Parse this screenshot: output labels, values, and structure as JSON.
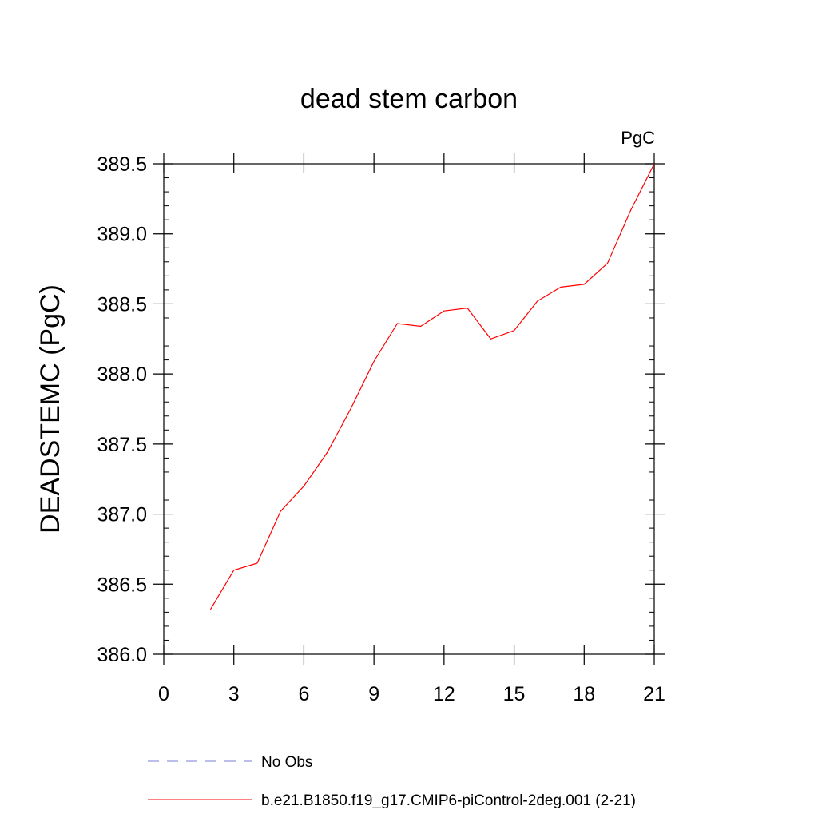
{
  "chart_data": {
    "type": "line",
    "title": "dead stem carbon",
    "units_label": "PgC",
    "ylabel": "DEADSTEMC  (PgC)",
    "xlabel": "",
    "xlim": [
      0,
      21
    ],
    "ylim": [
      386.0,
      389.5
    ],
    "x_ticks": [
      0,
      3,
      6,
      9,
      12,
      15,
      18,
      21
    ],
    "y_ticks": [
      386.0,
      386.5,
      387.0,
      387.5,
      388.0,
      388.5,
      389.0,
      389.5
    ],
    "x_tick_labels": [
      "0",
      "3",
      "6",
      "9",
      "12",
      "15",
      "18",
      "21"
    ],
    "y_tick_labels": [
      "386.0",
      "386.5",
      "387.0",
      "387.5",
      "388.0",
      "388.5",
      "389.0",
      "389.5"
    ],
    "grid": false,
    "legend_position": "bottom",
    "series": [
      {
        "name": "b.e21.B1850.f19_g17.CMIP6-piControl-2deg.001 (2-21)",
        "color": "#ff0000",
        "style": "solid",
        "x": [
          2,
          3,
          4,
          5,
          6,
          7,
          8,
          9,
          10,
          11,
          12,
          13,
          14,
          15,
          16,
          17,
          18,
          19,
          20,
          21
        ],
        "values": [
          386.32,
          386.6,
          386.65,
          387.02,
          387.2,
          387.44,
          387.75,
          388.09,
          388.36,
          388.34,
          388.45,
          388.47,
          388.25,
          388.31,
          388.52,
          388.62,
          388.64,
          388.79,
          389.17,
          389.5
        ]
      }
    ],
    "legend": [
      {
        "label": "No Obs",
        "color": "#7b7bd6",
        "style": "dashed"
      },
      {
        "label": "b.e21.B1850.f19_g17.CMIP6-piControl-2deg.001 (2-21)",
        "color": "#ff0000",
        "style": "solid"
      }
    ]
  }
}
